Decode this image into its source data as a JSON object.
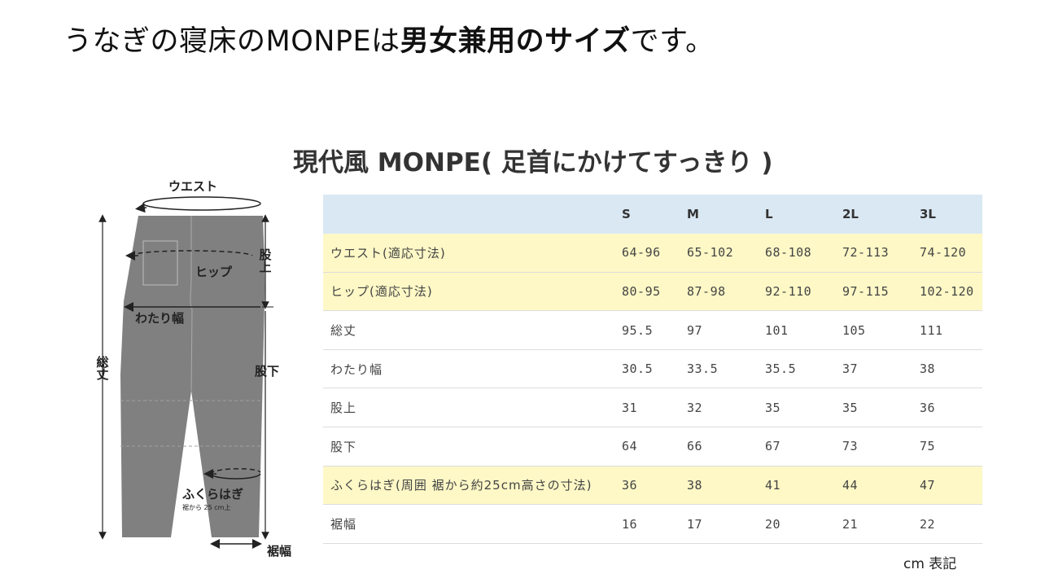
{
  "headline": {
    "normal_1": "うなぎの寝床のMONPEは",
    "bold": "男女兼用のサイズ",
    "normal_2": "です。"
  },
  "chart_title": "現代風 MONPE( 足首にかけてすっきり )",
  "diagram": {
    "waist": "ウエスト",
    "hip": "ヒップ",
    "rise": "股上",
    "thigh": "わたり幅",
    "length": "総丈",
    "inseam": "股下",
    "calf": "ふくらはぎ",
    "calf_note": "裾から 25 cm上",
    "hem": "裾幅",
    "pants_color": "#808080"
  },
  "table": {
    "sizes": [
      "S",
      "M",
      "L",
      "2L",
      "3L"
    ],
    "rows": [
      {
        "label": "ウエスト(適応寸法)",
        "highlight": true,
        "values": [
          "64-96",
          "65-102",
          "68-108",
          "72-113",
          "74-120"
        ]
      },
      {
        "label": "ヒップ(適応寸法)",
        "highlight": true,
        "values": [
          "80-95",
          "87-98",
          "92-110",
          "97-115",
          "102-120"
        ]
      },
      {
        "label": "総丈",
        "highlight": false,
        "values": [
          "95.5",
          "97",
          "101",
          "105",
          "111"
        ]
      },
      {
        "label": "わたり幅",
        "highlight": false,
        "values": [
          "30.5",
          "33.5",
          "35.5",
          "37",
          "38"
        ]
      },
      {
        "label": "股上",
        "highlight": false,
        "values": [
          "31",
          "32",
          "35",
          "35",
          "36"
        ]
      },
      {
        "label": "股下",
        "highlight": false,
        "values": [
          "64",
          "66",
          "67",
          "73",
          "75"
        ]
      },
      {
        "label": "ふくらはぎ(周囲 裾から約25cm高さの寸法)",
        "highlight": true,
        "values": [
          "36",
          "38",
          "41",
          "44",
          "47"
        ]
      },
      {
        "label": "裾幅",
        "highlight": false,
        "values": [
          "16",
          "17",
          "20",
          "21",
          "22"
        ]
      }
    ],
    "header_color": "#d9e8f3",
    "highlight_color": "#fdf8c6"
  },
  "note": "cm 表記"
}
